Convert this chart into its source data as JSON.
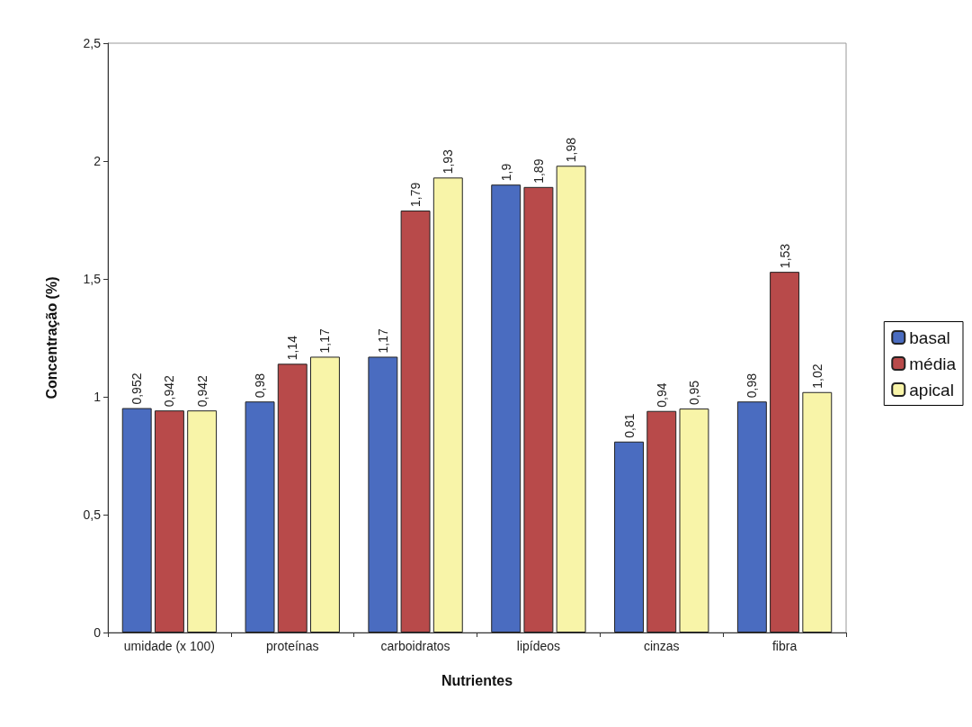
{
  "chart_data": {
    "type": "bar",
    "xlabel": "Nutrientes",
    "ylabel": "Concentração (%)",
    "categories": [
      "umidade (x 100)",
      "proteínas",
      "carboidratos",
      "lipídeos",
      "cinzas",
      "fibra"
    ],
    "series": [
      {
        "name": "basal",
        "color": "#4a6cc0",
        "values": [
          0.952,
          0.98,
          1.17,
          1.9,
          0.81,
          0.98
        ],
        "value_labels": [
          "0,952",
          "0,98",
          "1,17",
          "1,9",
          "0,81",
          "0,98"
        ]
      },
      {
        "name": "média",
        "color": "#b84a4a",
        "values": [
          0.942,
          1.14,
          1.79,
          1.89,
          0.94,
          1.53
        ],
        "value_labels": [
          "0,942",
          "1,14",
          "1,79",
          "1,89",
          "0,94",
          "1,53"
        ]
      },
      {
        "name": "apical",
        "color": "#f8f4a8",
        "values": [
          0.942,
          1.17,
          1.93,
          1.98,
          0.95,
          1.02
        ],
        "value_labels": [
          "0,942",
          "1,17",
          "1,93",
          "1,98",
          "0,95",
          "1,02"
        ]
      }
    ],
    "ylim": [
      0,
      2.5
    ],
    "yticks": [
      0,
      {
        "value": 0.5,
        "label": "0,5"
      },
      1,
      {
        "value": 1.5,
        "label": "1,5"
      },
      2,
      {
        "value": 2.5,
        "label": "2,5"
      }
    ],
    "grid": false,
    "legend": "right"
  }
}
